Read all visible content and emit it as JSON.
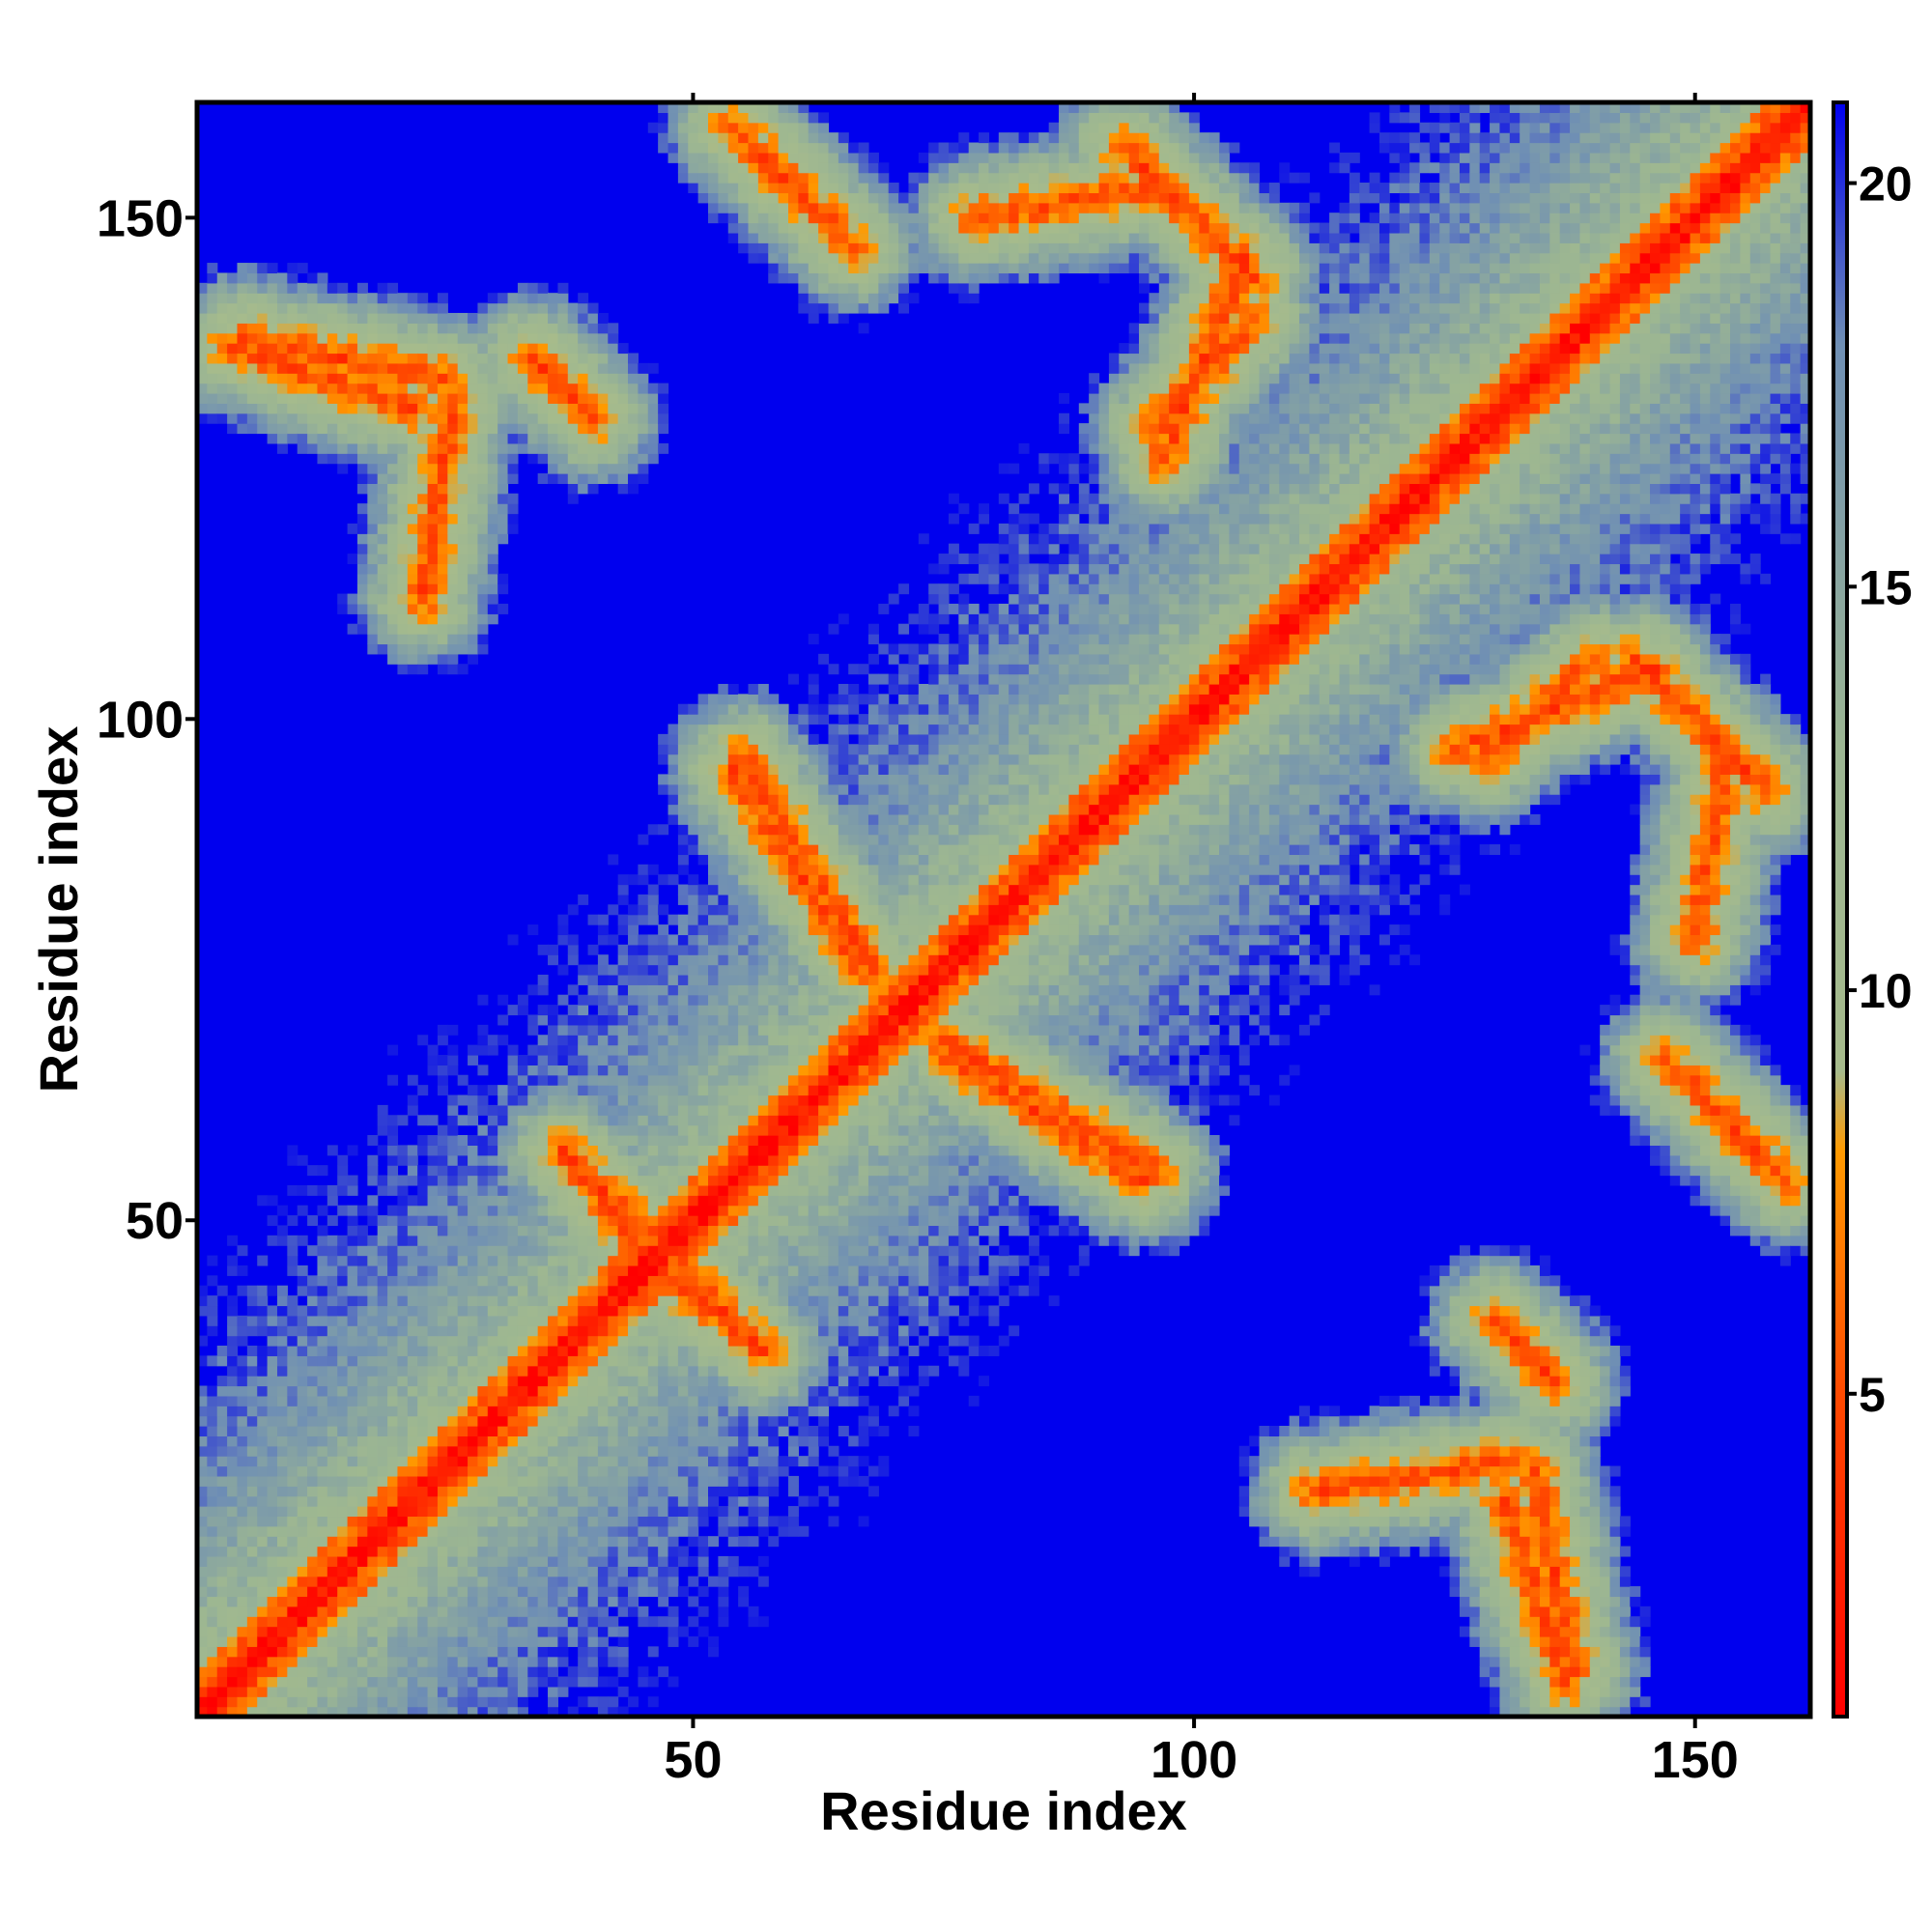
{
  "chart_data": {
    "type": "heatmap",
    "title": "",
    "xlabel": "Residue index",
    "ylabel": "Residue index",
    "n_residues": 161,
    "xlim": [
      1,
      161
    ],
    "ylim": [
      1,
      161
    ],
    "x_ticks": [
      50,
      100,
      150
    ],
    "y_ticks": [
      50,
      100,
      150
    ],
    "colorbar": {
      "range": [
        1,
        21
      ],
      "ticks": [
        5,
        10,
        15,
        20
      ],
      "stops": [
        {
          "value": 1,
          "color": "#ff0000"
        },
        {
          "value": 5,
          "color": "#ff4a00"
        },
        {
          "value": 8,
          "color": "#ff9a00"
        },
        {
          "value": 9,
          "color": "#a6bb8c"
        },
        {
          "value": 13,
          "color": "#9cb692"
        },
        {
          "value": 18,
          "color": "#6f8fb4"
        },
        {
          "value": 21,
          "color": "#0000ee"
        }
      ],
      "background_color": "#0000ee"
    },
    "description_of_structure": "symmetric residue distance map; diagonal band of small distances (red/orange), off-diagonal contact bands for paired strands/helices",
    "contact_bands": [
      {
        "type": "antiparallel",
        "x_start": 37,
        "x_end": 45,
        "y_start": 57,
        "y_end": 49
      },
      {
        "type": "antiparallel",
        "x_start": 47,
        "x_end": 57,
        "y_start": 45,
        "y_end": 37
      },
      {
        "type": "antiparallel",
        "x_start": 54,
        "x_end": 65,
        "y_start": 159,
        "y_end": 148
      },
      {
        "type": "antiparallel",
        "x_start": 94,
        "x_end": 106,
        "y_start": 156,
        "y_end": 144
      },
      {
        "type": "antiparallel",
        "x_start": 130,
        "x_end": 136,
        "y_start": 40,
        "y_end": 34
      },
      {
        "type": "antiparallel",
        "x_start": 145,
        "x_end": 157,
        "y_start": 105,
        "y_end": 93
      },
      {
        "type": "antiparallel",
        "x_start": 147,
        "x_end": 159,
        "y_start": 66,
        "y_end": 54
      },
      {
        "type": "parallel",
        "x_start": 4,
        "x_end": 22,
        "y_start": 137,
        "y_end": 131
      },
      {
        "type": "parallel",
        "x_start": 78,
        "x_end": 96,
        "y_start": 150,
        "y_end": 153
      },
      {
        "type": "parallel",
        "x_start": 96,
        "x_end": 106,
        "y_start": 129,
        "y_end": 140
      },
      {
        "type": "parallel",
        "x_start": 54,
        "x_end": 66,
        "y_start": 95,
        "y_end": 76
      },
      {
        "type": "parallel",
        "x_start": 75,
        "x_end": 96,
        "y_start": 68,
        "y_end": 55
      },
      {
        "type": "parallel",
        "x_start": 126,
        "x_end": 146,
        "y_start": 97,
        "y_end": 105
      },
      {
        "type": "parallel",
        "x_start": 134,
        "x_end": 138,
        "y_start": 25,
        "y_end": 5
      },
      {
        "type": "parallel",
        "x_start": 112,
        "x_end": 132,
        "y_start": 23,
        "y_end": 26
      }
    ]
  }
}
